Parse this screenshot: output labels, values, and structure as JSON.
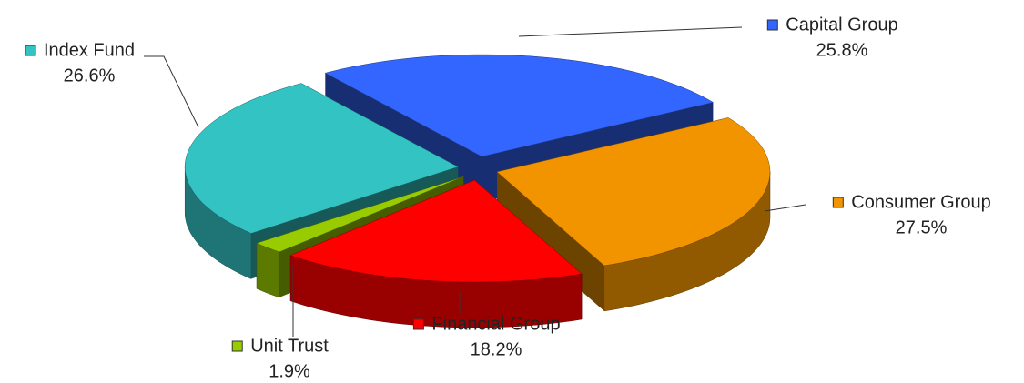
{
  "chart_data": {
    "type": "pie",
    "categories": [
      "Capital Group",
      "Consumer Group",
      "Financial Group",
      "Unit Trust",
      "Index Fund"
    ],
    "values": [
      25.8,
      27.5,
      18.2,
      1.9,
      26.6
    ],
    "value_labels": [
      "25.8%",
      "27.5%",
      "18.2%",
      "1.9%",
      "26.6%"
    ],
    "colors": [
      "#3366ff",
      "#f29400",
      "#ff0000",
      "#99cc00",
      "#33c3c3"
    ],
    "three_d": true,
    "exploded": true
  }
}
